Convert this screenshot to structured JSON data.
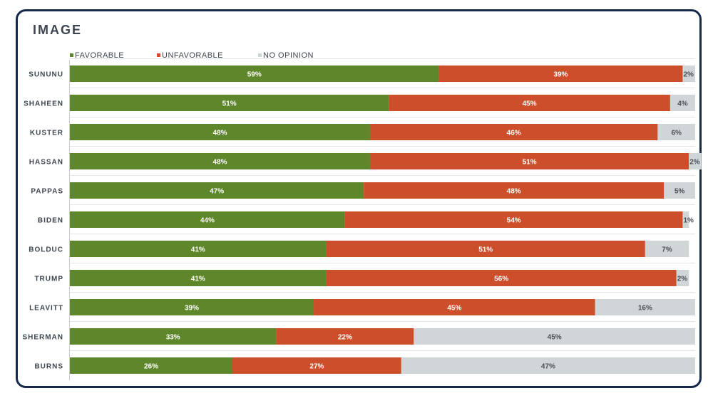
{
  "colors": {
    "favorable": "#5e862a",
    "unfavorable": "#cd4e2a",
    "no_opinion": "#d0d5d8",
    "frame": "#15294a"
  },
  "chart_data": {
    "type": "bar",
    "orientation": "horizontal",
    "stacked": true,
    "title": "IMAGE",
    "legend": [
      "FAVORABLE",
      "UNFAVORABLE",
      "NO OPINION"
    ],
    "legend_position": "top-left",
    "categories": [
      "SUNUNU",
      "SHAHEEN",
      "KUSTER",
      "HASSAN",
      "PAPPAS",
      "BIDEN",
      "BOLDUC",
      "TRUMP",
      "LEAVITT",
      "SHERMAN",
      "BURNS"
    ],
    "series": [
      {
        "name": "FAVORABLE",
        "values": [
          59,
          51,
          48,
          48,
          47,
          44,
          41,
          41,
          39,
          33,
          26
        ]
      },
      {
        "name": "UNFAVORABLE",
        "values": [
          39,
          45,
          46,
          51,
          48,
          54,
          51,
          56,
          45,
          22,
          27
        ]
      },
      {
        "name": "NO OPINION",
        "values": [
          2,
          4,
          6,
          2,
          5,
          1,
          7,
          2,
          16,
          45,
          47
        ]
      }
    ],
    "value_suffix": "%",
    "xlim": [
      0,
      100
    ]
  }
}
